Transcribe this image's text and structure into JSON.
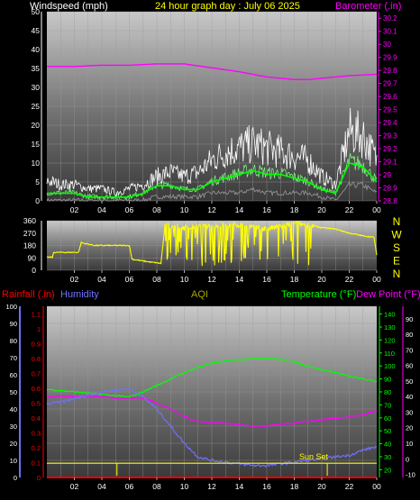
{
  "header": {
    "windspeed_label": "Windspeed (mph)",
    "title": "24 hour graph day : July 06 2025",
    "barometer_label": "Barometer (.in)"
  },
  "colors": {
    "background": "#000000",
    "wind_gust": "#ffffff",
    "wind_avg": "#00ff00",
    "wind_min": "#9a9a9a",
    "barometer": "#ff00ff",
    "direction": "#ffff00",
    "rainfall": "#ff0000",
    "humidity": "#7070ff",
    "temperature": "#00ff00",
    "dew_point": "#ff00ff",
    "aqi": "#ffff00",
    "sun_set": "#ffff00"
  },
  "direction_letters": [
    "N",
    "W",
    "S",
    "E",
    "N"
  ],
  "lower_legend": {
    "rainfall": "Rainfall (.in)",
    "humidity": "Humidity",
    "aqi": "AQI",
    "temperature": "Temperature (°F)",
    "dew_point": "Dew Point (°F)"
  },
  "sun_set_label": "Sun Set",
  "chart_data": [
    {
      "type": "line",
      "title": "24 hour graph day : July 06 2025",
      "x_ticks": [
        "02",
        "04",
        "06",
        "08",
        "10",
        "12",
        "14",
        "16",
        "18",
        "20",
        "22",
        "00"
      ],
      "xlim": [
        0,
        24
      ],
      "left_axis": {
        "label": "Windspeed (mph)",
        "ticks": [
          "0",
          "5",
          "10",
          "15",
          "20",
          "25",
          "30",
          "35",
          "40",
          "45",
          "50"
        ],
        "ylim": [
          0,
          50
        ]
      },
      "right_axis": {
        "label": "Barometer (.in)",
        "ticks": [
          "28.8",
          "28.9",
          "29",
          "29.1",
          "29.2",
          "29.3",
          "29.4",
          "29.5",
          "29.6",
          "29.7",
          "29.8",
          "29.9",
          "30",
          "30.1",
          "30.2"
        ],
        "ylim": [
          28.8,
          30.25
        ]
      },
      "series": [
        {
          "name": "Barometer (.in)",
          "axis": "right",
          "x": [
            0,
            2,
            4,
            6,
            8,
            10,
            12,
            14,
            16,
            17,
            18,
            19,
            20,
            22,
            24
          ],
          "values": [
            29.83,
            29.83,
            29.84,
            29.84,
            29.85,
            29.85,
            29.82,
            29.79,
            29.75,
            29.74,
            29.73,
            29.73,
            29.74,
            29.76,
            29.77
          ]
        },
        {
          "axis": "left",
          "x": [
            0,
            1,
            2,
            3,
            4,
            5,
            6,
            7,
            8,
            9,
            10,
            11,
            12,
            13,
            14,
            15,
            16,
            17,
            18,
            19,
            20,
            21,
            22,
            23,
            24
          ],
          "values": [
            5,
            4,
            4,
            3,
            3,
            2,
            3,
            4,
            6,
            7,
            6,
            7,
            10,
            12,
            13,
            14,
            13,
            12,
            11,
            10,
            6,
            4,
            17,
            16,
            10
          ]
        },
        {
          "axis": "left",
          "x": [
            0,
            1,
            2,
            3,
            4,
            5,
            6,
            7,
            8,
            9,
            10,
            11,
            12,
            13,
            14,
            15,
            16,
            17,
            18,
            19,
            20,
            21,
            22,
            23,
            24
          ],
          "values": [
            2,
            2,
            2,
            1,
            1,
            1,
            1,
            2,
            4,
            4,
            3,
            3,
            5,
            6,
            7,
            8,
            7,
            7,
            6,
            5,
            3,
            2,
            10,
            9,
            5
          ]
        },
        {
          "axis": "left",
          "x": [
            0,
            1,
            2,
            3,
            4,
            5,
            6,
            7,
            8,
            9,
            10,
            11,
            12,
            13,
            14,
            15,
            16,
            17,
            18,
            19,
            20,
            21,
            22,
            23,
            24
          ],
          "values": [
            0,
            0,
            0,
            0,
            0,
            0,
            0,
            0,
            1,
            1,
            1,
            1,
            2,
            2,
            2,
            3,
            2,
            2,
            2,
            2,
            1,
            0,
            4,
            4,
            2
          ]
        }
      ]
    },
    {
      "type": "line",
      "x_ticks": [
        "02",
        "04",
        "06",
        "08",
        "10",
        "12",
        "14",
        "16",
        "18",
        "20",
        "22",
        "00"
      ],
      "xlim": [
        0,
        24
      ],
      "left_axis": {
        "ticks": [
          "0",
          "90",
          "180",
          "270",
          "360"
        ],
        "ylim": [
          0,
          360
        ]
      },
      "series": [
        {
          "axis": "left",
          "x": [
            0,
            0.4,
            0.5,
            2.3,
            2.5,
            3.5,
            5.5,
            6.0,
            6.2,
            7.5,
            8.3,
            8.6,
            10,
            12,
            14,
            16,
            18,
            19,
            20,
            21,
            22,
            23,
            23.8,
            24
          ],
          "values": [
            95,
            95,
            130,
            130,
            200,
            180,
            180,
            180,
            80,
            60,
            50,
            330,
            310,
            320,
            330,
            300,
            340,
            330,
            310,
            300,
            270,
            250,
            240,
            110
          ]
        }
      ]
    },
    {
      "type": "line",
      "x_ticks": [
        "02",
        "04",
        "06",
        "08",
        "10",
        "12",
        "14",
        "16",
        "18",
        "20",
        "22",
        "00"
      ],
      "xlim": [
        0,
        24
      ],
      "left_axis_outer": {
        "label": "Humidity",
        "ticks": [
          "0",
          "10",
          "20",
          "30",
          "40",
          "50",
          "60",
          "70",
          "80",
          "90",
          "100"
        ],
        "ylim": [
          0,
          100
        ]
      },
      "left_axis_inner": {
        "label": "Rainfall (.in)",
        "ticks": [
          "0",
          "0.1",
          "0.2",
          "0.3",
          "0.4",
          "0.5",
          "0.6",
          "0.7",
          "0.8",
          "0.9",
          "1",
          "1.1"
        ],
        "ylim": [
          0,
          1.15
        ]
      },
      "right_axis_inner": {
        "label": "Temperature (°F)",
        "ticks": [
          "20",
          "30",
          "40",
          "50",
          "60",
          "70",
          "80",
          "90",
          "100",
          "110",
          "120",
          "130",
          "140"
        ],
        "ylim": [
          14,
          146
        ]
      },
      "right_axis_outer": {
        "label": "Dew Point (°F)",
        "ticks": [
          "-10",
          "0",
          "10",
          "20",
          "30",
          "40",
          "50",
          "60",
          "70",
          "80",
          "90"
        ],
        "ylim": [
          -12,
          98
        ]
      },
      "series": [
        {
          "name": "Temperature (°F)",
          "axis": "right_inner",
          "x": [
            0,
            1,
            2,
            3,
            4,
            5,
            6,
            7,
            8,
            9,
            10,
            11,
            12,
            13,
            14,
            15,
            16,
            17,
            18,
            19,
            20,
            21,
            22,
            23,
            24
          ],
          "values": [
            82,
            81,
            80,
            79,
            78,
            77,
            76,
            80,
            85,
            90,
            95,
            99,
            102,
            104,
            105,
            106,
            106,
            105,
            103,
            100,
            97,
            95,
            92,
            90,
            88
          ]
        },
        {
          "name": "Dew Point (°F)",
          "axis": "right_outer",
          "x": [
            0,
            1,
            2,
            3,
            4,
            5,
            6,
            7,
            8,
            9,
            10,
            11,
            12,
            13,
            14,
            15,
            16,
            17,
            18,
            19,
            20,
            21,
            22,
            23,
            24
          ],
          "values": [
            40,
            40,
            40,
            40,
            40,
            39,
            39,
            39,
            36,
            32,
            27,
            24,
            23,
            23,
            22,
            21,
            21,
            22,
            23,
            24,
            25,
            26,
            27,
            28,
            31
          ]
        },
        {
          "name": "Humidity",
          "axis": "left_outer",
          "x": [
            0,
            1,
            2,
            3,
            4,
            5,
            6,
            7,
            8,
            9,
            10,
            11,
            12,
            13,
            14,
            15,
            16,
            17,
            18,
            19,
            20,
            21,
            22,
            23,
            24
          ],
          "values": [
            43,
            44,
            46,
            48,
            50,
            51,
            52,
            47,
            40,
            30,
            20,
            12,
            10,
            9,
            8,
            7,
            7,
            8,
            9,
            10,
            11,
            12,
            13,
            16,
            18
          ]
        },
        {
          "name": "Rainfall (.in)",
          "axis": "left_inner",
          "x": [
            0,
            24
          ],
          "values": [
            0,
            0
          ]
        },
        {
          "name": "AQI",
          "axis": "right_inner",
          "x": [
            0,
            24
          ],
          "values": [
            25,
            25
          ]
        }
      ],
      "annotations": [
        {
          "label": "Sun Set",
          "x": 20.4
        }
      ]
    }
  ]
}
